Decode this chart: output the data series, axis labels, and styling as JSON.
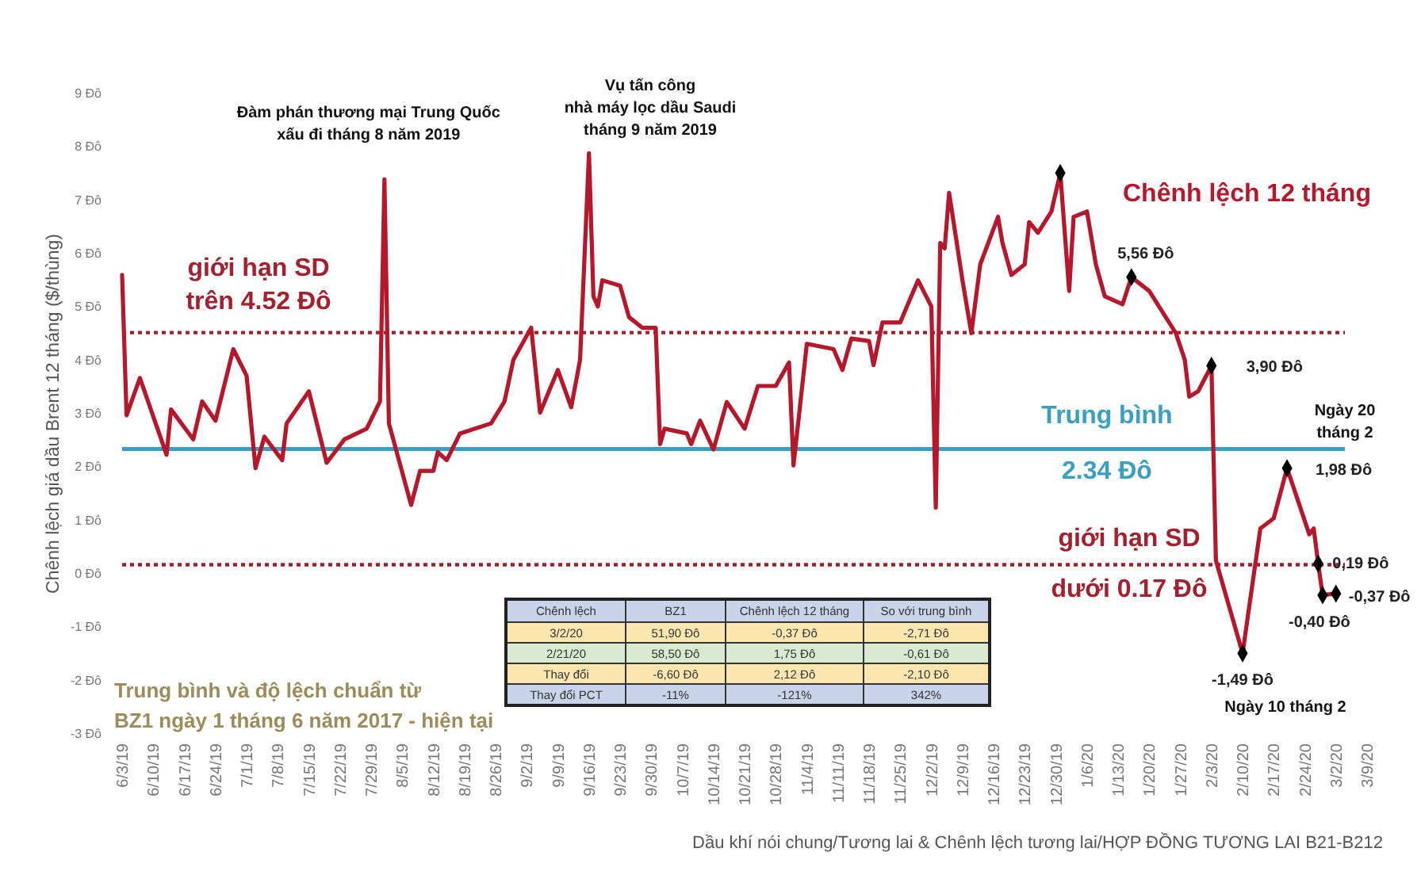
{
  "chart_data": [
    {
      "type": "line",
      "ylabel": "Chênh lệch giá dầu Brent 12 tháng ($/thùng)",
      "xlim": [
        "2019-06-03",
        "2020-03-09"
      ],
      "xticks": [
        {
          "value": "2019-06-03",
          "label": "6/3/19"
        },
        {
          "value": "2019-06-10",
          "label": "6/10/19"
        },
        {
          "value": "2019-06-17",
          "label": "6/17/19"
        },
        {
          "value": "2019-06-24",
          "label": "6/24/19"
        },
        {
          "value": "2019-07-01",
          "label": "7/1/19"
        },
        {
          "value": "2019-07-08",
          "label": "7/8/19"
        },
        {
          "value": "2019-07-15",
          "label": "7/15/19"
        },
        {
          "value": "2019-07-22",
          "label": "7/22/19"
        },
        {
          "value": "2019-07-29",
          "label": "7/29/19"
        },
        {
          "value": "2019-08-05",
          "label": "8/5/19"
        },
        {
          "value": "2019-08-12",
          "label": "8/12/19"
        },
        {
          "value": "2019-08-19",
          "label": "8/19/19"
        },
        {
          "value": "2019-08-26",
          "label": "8/26/19"
        },
        {
          "value": "2019-09-02",
          "label": "9/2/19"
        },
        {
          "value": "2019-09-09",
          "label": "9/9/19"
        },
        {
          "value": "2019-09-16",
          "label": "9/16/19"
        },
        {
          "value": "2019-09-23",
          "label": "9/23/19"
        },
        {
          "value": "2019-09-30",
          "label": "9/30/19"
        },
        {
          "value": "2019-10-07",
          "label": "10/7/19"
        },
        {
          "value": "2019-10-14",
          "label": "10/14/19"
        },
        {
          "value": "2019-10-21",
          "label": "10/21/19"
        },
        {
          "value": "2019-10-28",
          "label": "10/28/19"
        },
        {
          "value": "2019-11-04",
          "label": "11/4/19"
        },
        {
          "value": "2019-11-11",
          "label": "11/11/19"
        },
        {
          "value": "2019-11-18",
          "label": "11/18/19"
        },
        {
          "value": "2019-11-25",
          "label": "11/25/19"
        },
        {
          "value": "2019-12-02",
          "label": "12/2/19"
        },
        {
          "value": "2019-12-09",
          "label": "12/9/19"
        },
        {
          "value": "2019-12-16",
          "label": "12/16/19"
        },
        {
          "value": "2019-12-23",
          "label": "12/23/19"
        },
        {
          "value": "2019-12-30",
          "label": "12/30/19"
        },
        {
          "value": "2020-01-06",
          "label": "1/6/20"
        },
        {
          "value": "2020-01-13",
          "label": "1/13/20"
        },
        {
          "value": "2020-01-20",
          "label": "1/20/20"
        },
        {
          "value": "2020-01-27",
          "label": "1/27/20"
        },
        {
          "value": "2020-02-03",
          "label": "2/3/20"
        },
        {
          "value": "2020-02-10",
          "label": "2/10/20"
        },
        {
          "value": "2020-02-17",
          "label": "2/17/20"
        },
        {
          "value": "2020-02-24",
          "label": "2/24/20"
        },
        {
          "value": "2020-03-02",
          "label": "3/2/20"
        },
        {
          "value": "2020-03-09",
          "label": "3/9/20"
        }
      ],
      "ylim": [
        -3,
        9
      ],
      "yticks": [
        {
          "value": -3,
          "label": "-3 Đô"
        },
        {
          "value": -2,
          "label": "-2 Đô"
        },
        {
          "value": -1,
          "label": "-1 Đô"
        },
        {
          "value": 0,
          "label": "0 Đô"
        },
        {
          "value": 1,
          "label": "1 Đô"
        },
        {
          "value": 2,
          "label": "2 Đô"
        },
        {
          "value": 3,
          "label": "3 Đô"
        },
        {
          "value": 4,
          "label": "4 Đô"
        },
        {
          "value": 5,
          "label": "5 Đô"
        },
        {
          "value": 6,
          "label": "6 Đô"
        },
        {
          "value": 7,
          "label": "7 Đô"
        },
        {
          "value": 8,
          "label": "8 Đô"
        },
        {
          "value": 9,
          "label": "9 Đô"
        }
      ],
      "series": [
        {
          "name": "Chênh lệch 12 tháng",
          "type": "line",
          "color": "#b5172b",
          "x": [
            "2019-06-03",
            "2019-06-04",
            "2019-06-07",
            "2019-06-13",
            "2019-06-14",
            "2019-06-19",
            "2019-06-21",
            "2019-06-24",
            "2019-06-28",
            "2019-07-01",
            "2019-07-03",
            "2019-07-05",
            "2019-07-09",
            "2019-07-10",
            "2019-07-15",
            "2019-07-19",
            "2019-07-23",
            "2019-07-28",
            "2019-07-31",
            "2019-08-01",
            "2019-08-02",
            "2019-08-07",
            "2019-08-09",
            "2019-08-12",
            "2019-08-13",
            "2019-08-15",
            "2019-08-18",
            "2019-08-25",
            "2019-08-28",
            "2019-08-30",
            "2019-09-03",
            "2019-09-05",
            "2019-09-09",
            "2019-09-12",
            "2019-09-14",
            "2019-09-16",
            "2019-09-17",
            "2019-09-18",
            "2019-09-19",
            "2019-09-23",
            "2019-09-25",
            "2019-09-28",
            "2019-10-01",
            "2019-10-02",
            "2019-10-03",
            "2019-10-08",
            "2019-10-09",
            "2019-10-11",
            "2019-10-14",
            "2019-10-17",
            "2019-10-21",
            "2019-10-24",
            "2019-10-28",
            "2019-10-31",
            "2019-11-01",
            "2019-11-04",
            "2019-11-10",
            "2019-11-12",
            "2019-11-14",
            "2019-11-18",
            "2019-11-19",
            "2019-11-21",
            "2019-11-25",
            "2019-11-29",
            "2019-12-02",
            "2019-12-03",
            "2019-12-04",
            "2019-12-05",
            "2019-12-06",
            "2019-12-09",
            "2019-12-11",
            "2019-12-13",
            "2019-12-17",
            "2019-12-18",
            "2019-12-20",
            "2019-12-23",
            "2019-12-24",
            "2019-12-26",
            "2019-12-29",
            "2019-12-31",
            "2020-01-02",
            "2020-01-03",
            "2020-01-06",
            "2020-01-08",
            "2020-01-10",
            "2020-01-14",
            "2020-01-16",
            "2020-01-20",
            "2020-01-26",
            "2020-01-28",
            "2020-01-29",
            "2020-01-31",
            "2020-02-03",
            "2020-02-04",
            "2020-02-10",
            "2020-02-14",
            "2020-02-17",
            "2020-02-20",
            "2020-02-25",
            "2020-02-26",
            "2020-02-27",
            "2020-02-28",
            "2020-03-02"
          ],
          "values": [
            5.6,
            2.97,
            3.67,
            2.23,
            3.08,
            2.52,
            3.23,
            2.87,
            4.21,
            3.71,
            1.98,
            2.57,
            2.13,
            2.82,
            3.42,
            2.08,
            2.52,
            2.72,
            3.23,
            7.39,
            2.82,
            1.29,
            1.93,
            1.93,
            2.28,
            2.13,
            2.63,
            2.82,
            3.23,
            4.01,
            4.61,
            3.02,
            3.82,
            3.12,
            4.01,
            7.88,
            5.2,
            5.01,
            5.5,
            5.4,
            4.81,
            4.61,
            4.61,
            2.43,
            2.72,
            2.63,
            2.43,
            2.87,
            2.33,
            3.22,
            2.72,
            3.52,
            3.52,
            3.96,
            2.03,
            4.31,
            4.21,
            3.82,
            4.41,
            4.36,
            3.91,
            4.71,
            4.71,
            5.5,
            5.01,
            1.24,
            6.2,
            6.1,
            7.14,
            5.5,
            4.51,
            5.8,
            6.69,
            6.2,
            5.6,
            5.8,
            6.59,
            6.39,
            6.79,
            7.51,
            5.3,
            6.69,
            6.79,
            5.8,
            5.2,
            5.05,
            5.56,
            5.3,
            4.51,
            4.01,
            3.32,
            3.42,
            3.9,
            0.25,
            -1.49,
            0.85,
            1.04,
            1.98,
            0.74,
            0.85,
            0.19,
            -0.4,
            -0.37
          ]
        },
        {
          "type": "scatter",
          "color": "#000000",
          "marker": "diamond",
          "x": [
            "2019-12-31",
            "2020-01-16",
            "2020-02-03",
            "2020-02-10",
            "2020-02-20",
            "2020-02-27",
            "2020-02-28",
            "2020-03-02"
          ],
          "values": [
            7.51,
            5.56,
            3.9,
            -1.49,
            1.98,
            0.19,
            -0.4,
            -0.37
          ],
          "value_labels": [
            null,
            "5,56 Đô",
            "3,90 Đô",
            "-1,49 Đô",
            "1,98 Đô",
            "0,19 Đô",
            "-0,40 Đô",
            "-0,37 Đô"
          ]
        }
      ],
      "ref_lines": [
        {
          "axis": "y",
          "value": 4.52,
          "label": "giới hạn SD\ntrên 4.52 Đô",
          "color": "#a3202e",
          "line_style": "dotted"
        },
        {
          "axis": "y",
          "value": 2.34,
          "label": "Trung bình\n2.34 Đô",
          "color": "#3a9fc0",
          "line_style": "solid"
        },
        {
          "axis": "y",
          "value": 0.17,
          "label": "giới hạn SD\ndưới 0.17 Đô",
          "color": "#a3202e",
          "line_style": "dotted"
        }
      ],
      "annotations": [
        {
          "text": "Đàm phán thương mại Trung Quốc\nxấu đi tháng 8 năm 2019",
          "x": "2019-08-01",
          "y": 7.39
        },
        "Vụ tấn công\nnhà máy lọc dầu Saudi\ntháng 9 năm 2019",
        "Ngày 20\ntháng 2",
        {
          "text": "Ngày 10 tháng 2",
          "x": "2020-02-10",
          "y": -1.49
        },
        "Trung bình và độ lệch chuẩn từ\nBZ1 ngày 1 tháng 6 năm 2017 - hiện tại",
        "Dầu khí nói chung/Tương lai & Chênh lệch tương lai/HỢP ĐỒNG TƯƠNG LAI B21-B212"
      ]
    },
    {
      "type": "other",
      "categories": [
        "Chênh lệch",
        "BZ1",
        "Chênh lệch 12 tháng",
        "So với trung bình"
      ],
      "y_categories": [
        "3/2/20",
        "2/21/20",
        "Thay đổi",
        "Thay đổi PCT"
      ],
      "cell_labels": [
        [
          "51,90 Đô",
          "-0,37 Đô",
          "-2,71 Đô"
        ],
        [
          "58,50 Đô",
          "1,75 Đô",
          "-0,61 Đô"
        ],
        [
          "-6,60 Đô",
          "2,12 Đô",
          "-2,10 Đô"
        ],
        [
          "-11%",
          "-121%",
          "342%"
        ]
      ]
    }
  ]
}
